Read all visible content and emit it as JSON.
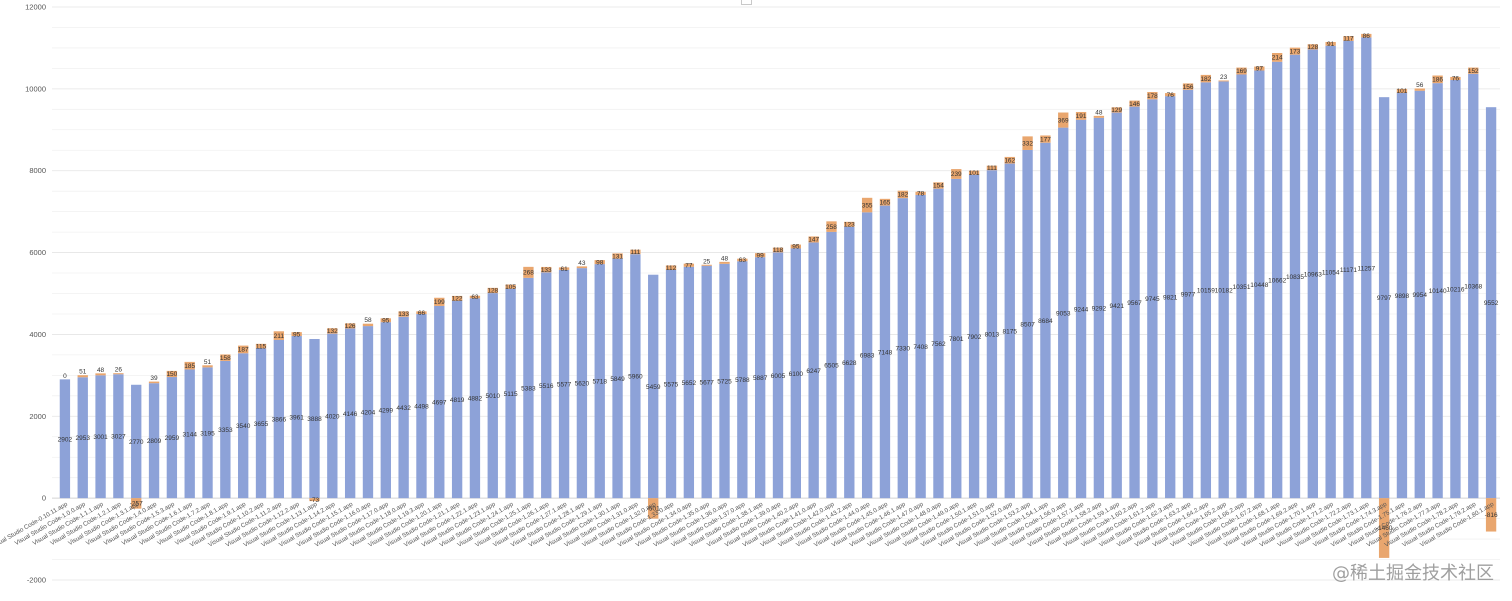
{
  "chart_data": {
    "type": "bar",
    "ylim": [
      -2000,
      12000
    ],
    "y_ticks": [
      -2000,
      0,
      2000,
      4000,
      6000,
      8000,
      10000,
      12000
    ],
    "grid": true,
    "colors": {
      "base": "#8da2d8",
      "delta_up": "#e9a66e",
      "delta_down": "#e9a66e"
    },
    "categories": [
      "Visual Studio Code-0.10.11.app",
      "Visual Studio Code-1.0.0.app",
      "Visual Studio Code-1.1.1.app",
      "Visual Studio Code-1.2.1.app",
      "Visual Studio Code-1.3.1.app",
      "Visual Studio Code-1.4.0.app",
      "Visual Studio Code-1.5.3.app",
      "Visual Studio Code-1.6.1.app",
      "Visual Studio Code-1.7.2.app",
      "Visual Studio Code-1.8.1.app",
      "Visual Studio Code-1.9.1.app",
      "Visual Studio Code-1.10.2.app",
      "Visual Studio Code-1.11.2.app",
      "Visual Studio Code-1.12.2.app",
      "Visual Studio Code-1.13.1.app",
      "Visual Studio Code-1.14.2.app",
      "Visual Studio Code-1.15.1.app",
      "Visual Studio Code-1.16.0.app",
      "Visual Studio Code-1.17.0.app",
      "Visual Studio Code-1.18.0.app",
      "Visual Studio Code-1.19.3.app",
      "Visual Studio Code-1.20.1.app",
      "Visual Studio Code-1.21.1.app",
      "Visual Studio Code-1.22.1.app",
      "Visual Studio Code-1.23.1.app",
      "Visual Studio Code-1.24.1.app",
      "Visual Studio Code-1.25.1.app",
      "Visual Studio Code-1.26.1.app",
      "Visual Studio Code-1.27.1.app",
      "Visual Studio Code-1.28.1.app",
      "Visual Studio Code-1.29.1.app",
      "Visual Studio Code-1.30.1.app",
      "Visual Studio Code-1.31.0.app",
      "Visual Studio Code-1.32.0.app",
      "Visual Studio Code-1.33.0.app",
      "Visual Studio Code-1.34.0.app",
      "Visual Studio Code-1.35.0.app",
      "Visual Studio Code-1.36.0.app",
      "Visual Studio Code-1.37.0.app",
      "Visual Studio Code-1.38.1.app",
      "Visual Studio Code-1.39.0.app",
      "Visual Studio Code-1.40.2.app",
      "Visual Studio Code-1.41.0.app",
      "Visual Studio Code-1.42.0.app",
      "Visual Studio Code-1.43.2.app",
      "Visual Studio Code-1.44.0.app",
      "Visual Studio Code-1.45.0.app",
      "Visual Studio Code-1.46.1.app",
      "Visual Studio Code-1.47.0.app",
      "Visual Studio Code-1.48.0.app",
      "Visual Studio Code-1.49.0.app",
      "Visual Studio Code-1.50.1.app",
      "Visual Studio Code-1.51.0.app",
      "Visual Studio Code-1.52.0.app",
      "Visual Studio Code-1.53.2.app",
      "Visual Studio Code-1.54.1.app",
      "Visual Studio Code-1.56.0.app",
      "Visual Studio Code-1.57.1.app",
      "Visual Studio Code-1.58.2.app",
      "Visual Studio Code-1.59.1.app",
      "Visual Studio Code-1.60.2.app",
      "Visual Studio Code-1.61.2.app",
      "Visual Studio Code-1.62.3.app",
      "Visual Studio Code-1.63.2.app",
      "Visual Studio Code-1.64.2.app",
      "Visual Studio Code-1.65.2.app",
      "Visual Studio Code-1.66.2.app",
      "Visual Studio Code-1.67.2.app",
      "Visual Studio Code-1.68.1.app",
      "Visual Studio Code-1.69.2.app",
      "Visual Studio Code-1.70.1.app",
      "Visual Studio Code-1.71.2.app",
      "Visual Studio Code-1.72.2.app",
      "Visual Studio Code-1.73.1.app",
      "Visual Studio Code-1.74.3.app",
      "Visual Studio Code-1.75.1.app",
      "Visual Studio Code-1.76.2.app",
      "Visual Studio Code-1.77.3.app",
      "Visual Studio Code-1.78.2.app",
      "Visual Studio Code-1.79.2.app",
      "Visual Studio Code-1.80.1.app"
    ],
    "series": [
      {
        "values": [
          2902,
          2953,
          3001,
          3027,
          2770,
          2809,
          2959,
          3144,
          3195,
          3353,
          3540,
          3655,
          3866,
          3961,
          3888,
          4020,
          4146,
          4204,
          4299,
          4432,
          4498,
          4697,
          4819,
          4882,
          5010,
          5115,
          5383,
          5516,
          5577,
          5620,
          5718,
          5849,
          5960,
          5459,
          5575,
          5652,
          5677,
          5725,
          5788,
          5887,
          6005,
          6100,
          6247,
          6505,
          6628,
          6983,
          7148,
          7330,
          7408,
          7562,
          7801,
          7902,
          8013,
          8175,
          8507,
          8684,
          9053,
          9244,
          9292,
          9421,
          9567,
          9745,
          9821,
          9977,
          10159,
          10182,
          10351,
          10448,
          10662,
          10835,
          10963,
          11054,
          11171,
          11257,
          9797,
          9898,
          9954,
          10140,
          10216,
          10368,
          9552
        ]
      },
      {
        "values": [
          0,
          51,
          48,
          26,
          -257,
          39,
          150,
          185,
          51,
          158,
          187,
          115,
          211,
          95,
          -73,
          132,
          126,
          58,
          95,
          133,
          66,
          199,
          122,
          63,
          128,
          105,
          268,
          133,
          61,
          43,
          98,
          131,
          111,
          -501,
          112,
          77,
          25,
          48,
          63,
          99,
          118,
          95,
          147,
          258,
          123,
          355,
          165,
          182,
          78,
          154,
          239,
          101,
          111,
          162,
          332,
          177,
          369,
          191,
          48,
          129,
          146,
          178,
          76,
          156,
          182,
          23,
          169,
          97,
          214,
          173,
          128,
          91,
          117,
          86,
          -1460,
          101,
          56,
          186,
          76,
          152,
          -816
        ]
      }
    ]
  }
}
